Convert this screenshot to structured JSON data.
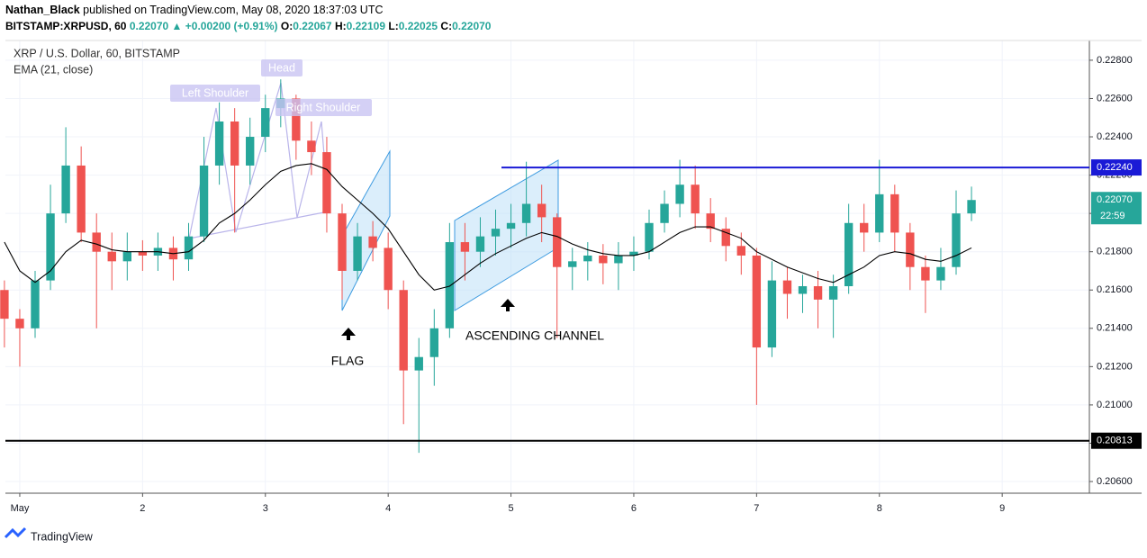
{
  "header": {
    "publisher": "Nathan_Black",
    "published": "published on TradingView.com, May 08, 2020 18:37:03 UTC",
    "symbol": "BITSTAMP:XRPUSD, 60",
    "last": "0.22070",
    "change": "+0.00200 (+0.91%)",
    "o_label": "O:",
    "open": "0.22067",
    "h_label": "H:",
    "high": "0.22109",
    "l_label": "L:",
    "low": "0.22025",
    "c_label": "C:",
    "close": "0.22070"
  },
  "footer": {
    "brand": "TradingView"
  },
  "chart_data": {
    "type": "candlestick",
    "title": "XRP / U.S. Dollar, 60, BITSTAMP",
    "indicator": "EMA (21, close)",
    "up_color": "#26a69a",
    "down_color": "#ef5350",
    "ema_color": "#000000",
    "grid": true,
    "x": [
      0.875,
      1,
      1.125,
      1.25,
      1.375,
      1.5,
      1.625,
      1.75,
      1.875,
      2,
      2.125,
      2.25,
      2.375,
      2.5,
      2.625,
      2.75,
      2.875,
      3,
      3.125,
      3.25,
      3.375,
      3.5,
      3.625,
      3.75,
      3.875,
      4,
      4.125,
      4.25,
      4.375,
      4.5,
      4.625,
      4.75,
      4.875,
      5,
      5.125,
      5.25,
      5.375,
      5.5,
      5.625,
      5.75,
      5.875,
      6,
      6.125,
      6.25,
      6.375,
      6.5,
      6.625,
      6.75,
      6.875,
      7,
      7.125,
      7.25,
      7.375,
      7.5,
      7.625,
      7.75,
      7.875,
      8,
      8.125,
      8.25,
      8.375,
      8.5,
      8.625,
      8.75
    ],
    "open": [
      0.216,
      0.2145,
      0.214,
      0.2165,
      0.22,
      0.2225,
      0.219,
      0.218,
      0.2175,
      0.218,
      0.2178,
      0.2182,
      0.2176,
      0.2188,
      0.2225,
      0.2248,
      0.2225,
      0.224,
      0.2255,
      0.226,
      0.2238,
      0.2232,
      0.22,
      0.217,
      0.2188,
      0.2182,
      0.216,
      0.2118,
      0.2125,
      0.214,
      0.2185,
      0.218,
      0.2188,
      0.2192,
      0.2195,
      0.2205,
      0.2198,
      0.2172,
      0.2175,
      0.2178,
      0.2174,
      0.2178,
      0.218,
      0.2195,
      0.2205,
      0.2215,
      0.22,
      0.2192,
      0.2183,
      0.2178,
      0.213,
      0.2165,
      0.2158,
      0.2162,
      0.2155,
      0.2162,
      0.2195,
      0.219,
      0.221,
      0.219,
      0.2172,
      0.2165,
      0.2172,
      0.22
    ],
    "high": [
      0.2165,
      0.215,
      0.217,
      0.2215,
      0.2245,
      0.2235,
      0.22,
      0.219,
      0.219,
      0.2186,
      0.219,
      0.2188,
      0.2195,
      0.224,
      0.2258,
      0.2255,
      0.225,
      0.2262,
      0.227,
      0.2262,
      0.2248,
      0.224,
      0.2205,
      0.2195,
      0.2196,
      0.219,
      0.2165,
      0.2135,
      0.215,
      0.2195,
      0.2195,
      0.2198,
      0.2202,
      0.2205,
      0.2227,
      0.2215,
      0.22,
      0.2182,
      0.2185,
      0.2184,
      0.2185,
      0.2188,
      0.2202,
      0.2212,
      0.2228,
      0.2225,
      0.2208,
      0.2198,
      0.219,
      0.2182,
      0.2175,
      0.2172,
      0.2168,
      0.217,
      0.2168,
      0.2205,
      0.2205,
      0.2228,
      0.2215,
      0.2195,
      0.2178,
      0.2182,
      0.2212,
      0.2214
    ],
    "low": [
      0.213,
      0.212,
      0.2135,
      0.216,
      0.2195,
      0.2185,
      0.214,
      0.216,
      0.2165,
      0.217,
      0.217,
      0.2165,
      0.217,
      0.2185,
      0.2215,
      0.219,
      0.2215,
      0.2232,
      0.2245,
      0.2228,
      0.222,
      0.219,
      0.2155,
      0.2165,
      0.2175,
      0.215,
      0.209,
      0.2075,
      0.211,
      0.2135,
      0.2165,
      0.2172,
      0.2178,
      0.2182,
      0.2188,
      0.2185,
      0.2135,
      0.216,
      0.2165,
      0.2163,
      0.216,
      0.217,
      0.2176,
      0.219,
      0.2198,
      0.2192,
      0.2185,
      0.2175,
      0.2168,
      0.21,
      0.2125,
      0.2145,
      0.2148,
      0.214,
      0.2135,
      0.2158,
      0.218,
      0.2185,
      0.218,
      0.216,
      0.2148,
      0.216,
      0.2168,
      0.2196
    ],
    "close": [
      0.2145,
      0.214,
      0.2165,
      0.22,
      0.2225,
      0.219,
      0.218,
      0.2175,
      0.218,
      0.2178,
      0.2182,
      0.2176,
      0.2188,
      0.2225,
      0.2248,
      0.2225,
      0.224,
      0.2255,
      0.226,
      0.2238,
      0.2232,
      0.22,
      0.217,
      0.2188,
      0.2182,
      0.216,
      0.2118,
      0.2125,
      0.214,
      0.2185,
      0.218,
      0.2188,
      0.2192,
      0.2195,
      0.2205,
      0.2198,
      0.2172,
      0.2175,
      0.2178,
      0.2174,
      0.2178,
      0.218,
      0.2195,
      0.2205,
      0.2215,
      0.22,
      0.2192,
      0.2183,
      0.2178,
      0.213,
      0.2165,
      0.2158,
      0.2162,
      0.2155,
      0.2162,
      0.2195,
      0.219,
      0.221,
      0.219,
      0.2172,
      0.2165,
      0.2172,
      0.22,
      0.2207
    ],
    "ema": {
      "values": [
        0.2185,
        0.217,
        0.2164,
        0.217,
        0.218,
        0.2186,
        0.2184,
        0.2181,
        0.218,
        0.218,
        0.218,
        0.2179,
        0.218,
        0.2186,
        0.2195,
        0.22,
        0.2207,
        0.2215,
        0.2222,
        0.2225,
        0.2226,
        0.2223,
        0.2214,
        0.2207,
        0.22,
        0.2192,
        0.218,
        0.2168,
        0.216,
        0.2162,
        0.2168,
        0.2174,
        0.2179,
        0.2183,
        0.2187,
        0.219,
        0.2188,
        0.2184,
        0.2181,
        0.2179,
        0.2178,
        0.2178,
        0.218,
        0.2185,
        0.219,
        0.2193,
        0.2193,
        0.219,
        0.2187,
        0.218,
        0.2176,
        0.2172,
        0.2169,
        0.2166,
        0.2164,
        0.2168,
        0.2172,
        0.2178,
        0.218,
        0.2179,
        0.2176,
        0.2175,
        0.2178,
        0.2182
      ]
    },
    "xlim": [
      0.883,
      9.71
    ],
    "xticks": [
      {
        "value": 1,
        "label": "May"
      },
      2,
      3,
      4,
      5,
      6,
      7,
      8,
      9
    ],
    "ylim": [
      0.20539,
      0.22903
    ],
    "yticks": [
      {
        "value": 0.206,
        "label": "0.20600"
      },
      {
        "value": 0.208,
        "label": "0.20800"
      },
      {
        "value": 0.21,
        "label": "0.21000"
      },
      {
        "value": 0.212,
        "label": "0.21200"
      },
      {
        "value": 0.214,
        "label": "0.21400"
      },
      {
        "value": 0.216,
        "label": "0.21600"
      },
      {
        "value": 0.218,
        "label": "0.21800"
      },
      {
        "value": 0.22,
        "label": "0.22000"
      },
      {
        "value": 0.222,
        "label": "0.22200"
      },
      {
        "value": 0.224,
        "label": "0.22400"
      },
      {
        "value": 0.226,
        "label": "0.22600"
      },
      {
        "value": 0.228,
        "label": "0.22800"
      }
    ],
    "hlines": [
      {
        "value": 0.2224,
        "label": "0.22240",
        "color": "#1a1ad6"
      },
      {
        "value": 0.20813,
        "label": "0.20813",
        "color": "#000000"
      }
    ],
    "last_price": {
      "value": 0.2207,
      "label": "0.22070",
      "countdown": "22:59",
      "color": "#26a69a"
    },
    "annotations": [
      "Left Shoulder",
      "Head",
      "Right Shoulder",
      "FLAG",
      "ASCENDING CHANNEL"
    ]
  }
}
